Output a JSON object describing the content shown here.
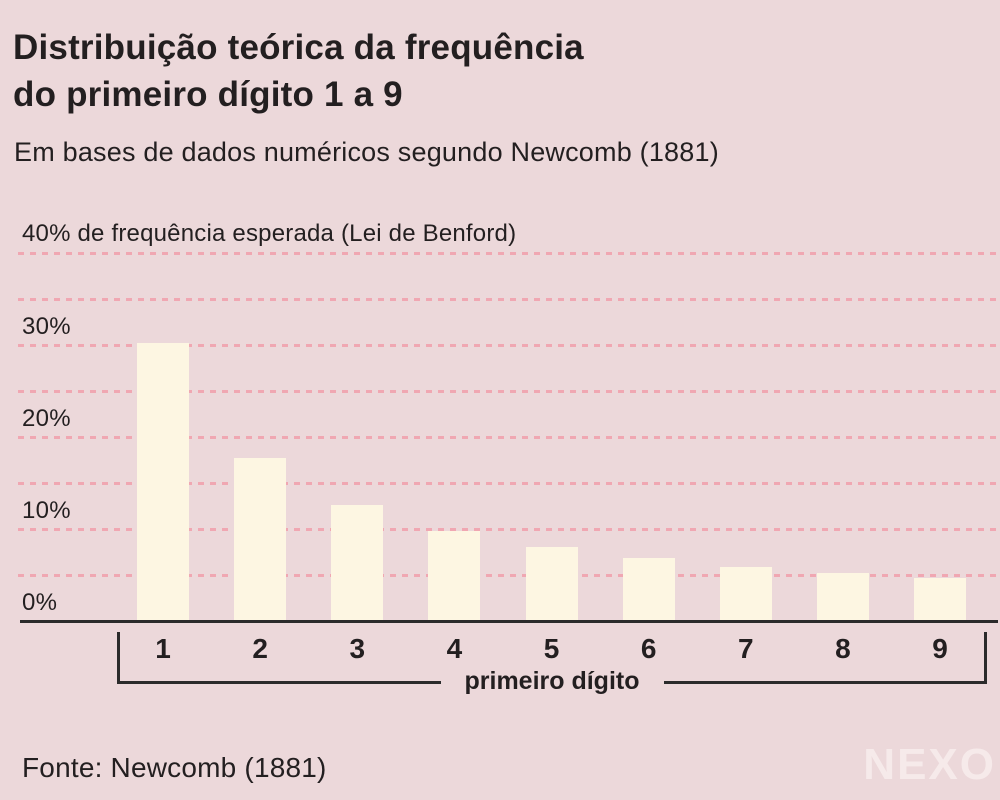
{
  "header": {
    "title": "Distribuição teórica da frequência\ndo primeiro dígito 1 a 9",
    "subtitle": "Em bases de dados numéricos segundo Newcomb (1881)"
  },
  "plot": {
    "annotation": "40% de frequência esperada (Lei de Benford)",
    "ytick_suffix": "%"
  },
  "footer": {
    "source": "Fonte: Newcomb (1881)",
    "logo": "NEXO"
  },
  "chart_data": {
    "type": "bar",
    "title": "Distribuição teórica da frequência do primeiro dígito 1 a 9",
    "subtitle": "Em bases de dados numéricos segundo Newcomb (1881)",
    "categories": [
      "1",
      "2",
      "3",
      "4",
      "5",
      "6",
      "7",
      "8",
      "9"
    ],
    "values": [
      30.1,
      17.6,
      12.5,
      9.7,
      7.9,
      6.7,
      5.8,
      5.1,
      4.6
    ],
    "unit": "%",
    "xlabel": "primeiro dígito",
    "ylabel": "frequência esperada (%)",
    "ylim": [
      0,
      40
    ],
    "yticks_labeled": [
      0,
      10,
      20,
      30
    ],
    "gridline_step": 5,
    "grid_style": "dashed horizontal",
    "legend": "none",
    "annotation": "40% de frequência esperada (Lei de Benford)",
    "source": "Fonte: Newcomb (1881)"
  },
  "colors": {
    "background": "#ecd8da",
    "bar": "#fdf6e2",
    "gridline": "#f0a7b2",
    "text": "#231f20",
    "axis": "#2b2b2b",
    "logo": "#f6eaea"
  }
}
